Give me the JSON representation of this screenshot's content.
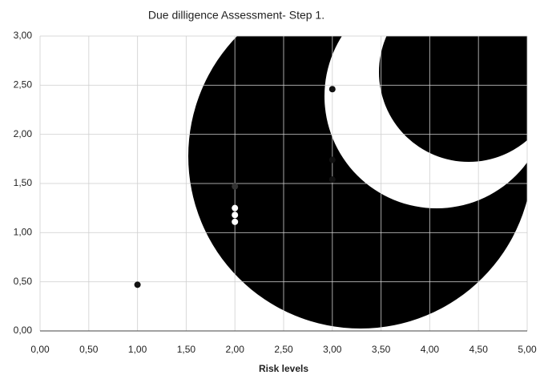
{
  "chart_data": {
    "type": "scatter",
    "title": "Due dilligence Assessment- Step 1.",
    "x_label": "Risk levels",
    "x": [
      1,
      2,
      2,
      2,
      2,
      3,
      3,
      3
    ],
    "values": [
      0.47,
      1.47,
      1.25,
      1.18,
      1.11,
      2.46,
      1.74,
      1.54
    ],
    "colors": [
      "#111111",
      "#333333",
      "#ffffff",
      "#ffffff",
      "#ffffff",
      "#111111",
      "#111111",
      "#111111"
    ],
    "xlim": [
      0,
      5
    ],
    "ylim": [
      0,
      3
    ],
    "xticks": [
      {
        "value": 0,
        "label": "0,00"
      },
      {
        "value": 0.5,
        "label": "0,50"
      },
      {
        "value": 1,
        "label": "1,00"
      },
      {
        "value": 1.5,
        "label": "1,50"
      },
      {
        "value": 2,
        "label": "2,00"
      },
      {
        "value": 2.5,
        "label": "2,50"
      },
      {
        "value": 3,
        "label": "3,00"
      },
      {
        "value": 3.5,
        "label": "3,50"
      },
      {
        "value": 4,
        "label": "4,00"
      },
      {
        "value": 4.5,
        "label": "4,50"
      },
      {
        "value": 5,
        "label": "5,00"
      }
    ],
    "yticks": [
      {
        "value": 0,
        "label": "0,00"
      },
      {
        "value": 0.5,
        "label": "0,50"
      },
      {
        "value": 1,
        "label": "1,00"
      },
      {
        "value": 1.5,
        "label": "1,50"
      },
      {
        "value": 2,
        "label": "2,00"
      },
      {
        "value": 2.5,
        "label": "2,50"
      },
      {
        "value": 3,
        "label": "3,00"
      }
    ],
    "grid": true
  }
}
